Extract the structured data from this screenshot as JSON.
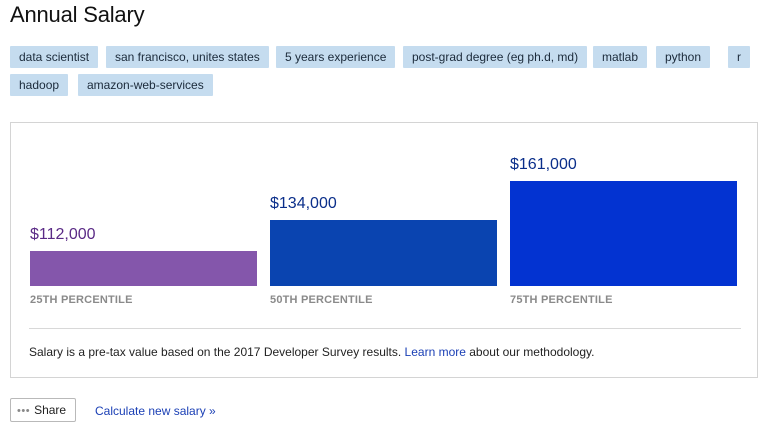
{
  "header": {
    "title": "Annual Salary"
  },
  "tags": [
    "data scientist",
    "san francisco, unites states",
    "5 years experience",
    "post-grad degree (eg ph.d, md)",
    "matlab",
    "python",
    "r",
    "hadoop",
    "amazon-web-services"
  ],
  "chart_data": {
    "type": "bar",
    "categories": [
      "25TH PERCENTILE",
      "50TH PERCENTILE",
      "75TH PERCENTILE"
    ],
    "values": [
      112000,
      134000,
      161000
    ],
    "value_labels": [
      "$112,000",
      "$134,000",
      "$161,000"
    ],
    "colors": [
      "#8456ab",
      "#0a44b0",
      "#0333d1"
    ],
    "label_colors": [
      "#5a2a86",
      "#0a2e8a",
      "#0a2e8a"
    ],
    "grid": false
  },
  "footer": {
    "note_before": "Salary is a pre-tax value based on the 2017 Developer Survey results. ",
    "note_link": "Learn more",
    "note_after": " about our methodology."
  },
  "actions": {
    "share_label": "Share",
    "calculate_label": "Calculate new salary »"
  }
}
